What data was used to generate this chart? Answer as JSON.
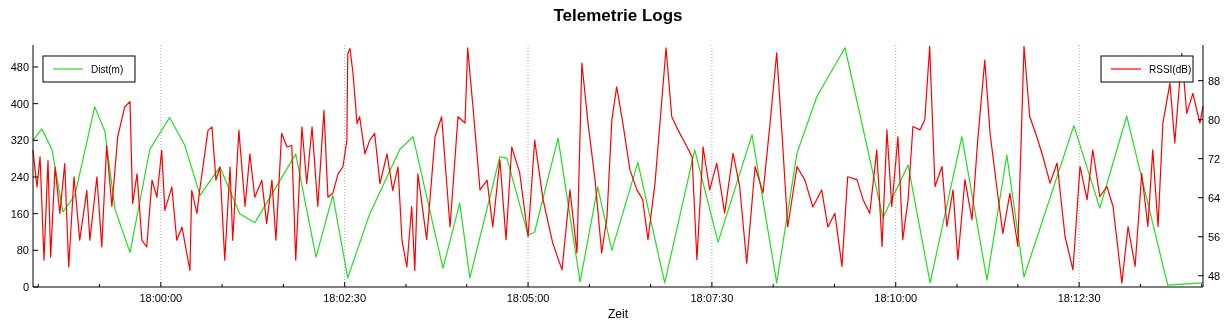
{
  "chart_data": {
    "type": "line",
    "title": "Telemetrie Logs",
    "xlabel": "Zeit",
    "xlim": [
      17.971,
      18.2364
    ],
    "ylim": [
      0,
      528
    ],
    "y2lim": [
      45.7,
      95.3
    ],
    "xticks": [
      {
        "value": 17.9722,
        "label": null
      },
      {
        "value": 17.9861,
        "label": null
      },
      {
        "value": 18.0,
        "label": "18:00:00"
      },
      {
        "value": 18.0139,
        "label": null
      },
      {
        "value": 18.0278,
        "label": null
      },
      {
        "value": 18.0417,
        "label": "18:02:30"
      },
      {
        "value": 18.0556,
        "label": null
      },
      {
        "value": 18.0694,
        "label": null
      },
      {
        "value": 18.0833,
        "label": "18:05:00"
      },
      {
        "value": 18.0972,
        "label": null
      },
      {
        "value": 18.1111,
        "label": null
      },
      {
        "value": 18.125,
        "label": "18:07:30"
      },
      {
        "value": 18.1389,
        "label": null
      },
      {
        "value": 18.1528,
        "label": null
      },
      {
        "value": 18.1667,
        "label": "18:10:00"
      },
      {
        "value": 18.1806,
        "label": null
      },
      {
        "value": 18.1944,
        "label": null
      },
      {
        "value": 18.2083,
        "label": "18:12:30"
      },
      {
        "value": 18.2222,
        "label": null
      },
      {
        "value": 18.2361,
        "label": null
      }
    ],
    "yticks": [
      0,
      80,
      160,
      240,
      320,
      400,
      480
    ],
    "y2ticks": [
      48,
      56,
      64,
      72,
      80,
      88
    ],
    "grid": "x",
    "legend": "top",
    "marker": "none",
    "line_style": "solid",
    "series": [
      {
        "name": "Dist(m)",
        "color": "#22dd22",
        "x": [
          17.971,
          17.973,
          17.9753,
          17.9778,
          17.9805,
          17.985,
          17.9873,
          17.9896,
          17.993,
          17.9975,
          18.002,
          18.0054,
          18.0089,
          18.0134,
          18.0179,
          18.0213,
          18.0306,
          18.0352,
          18.039,
          18.0424,
          18.0474,
          18.0542,
          18.0572,
          18.064,
          18.0678,
          18.0701,
          18.0769,
          18.0785,
          18.0833,
          18.0848,
          18.0901,
          18.0951,
          18.0991,
          18.1023,
          18.1082,
          18.1143,
          18.1211,
          18.1264,
          18.1341,
          18.1397,
          18.1443,
          18.1488,
          18.1552,
          18.1638,
          18.1695,
          18.1745,
          18.1817,
          18.1874,
          18.1919,
          18.1958,
          18.2071,
          18.213,
          18.2191,
          18.2284,
          18.2364
        ],
        "values": [
          320,
          345,
          300,
          164,
          200,
          393,
          340,
          170,
          75,
          300,
          370,
          310,
          200,
          262,
          160,
          140,
          290,
          65,
          200,
          20,
          160,
          300,
          328,
          41,
          183,
          20,
          284,
          281,
          113,
          120,
          325,
          11,
          218,
          80,
          272,
          9,
          299,
          98,
          332,
          9,
          292,
          415,
          522,
          151,
          266,
          9,
          328,
          15,
          288,
          22,
          352,
          172,
          373,
          4,
          9
        ]
      },
      {
        "name": "RSSI(dB)",
        "color": "#ff0000",
        "axis": "y2",
        "x": [
          17.971,
          17.9719,
          17.9726,
          17.9735,
          17.9744,
          17.975,
          17.976,
          17.9771,
          17.9782,
          17.9791,
          17.9803,
          17.9816,
          17.9832,
          17.9839,
          17.9855,
          17.9866,
          17.9877,
          17.9889,
          17.9902,
          17.9918,
          17.993,
          17.9936,
          17.9946,
          17.9957,
          17.9968,
          17.998,
          17.9991,
          18.0002,
          18.0009,
          18.0025,
          18.0036,
          18.0048,
          18.0066,
          18.007,
          18.0082,
          18.0088,
          18.0107,
          18.0116,
          18.0125,
          18.0134,
          18.0145,
          18.0157,
          18.0163,
          18.0177,
          18.0191,
          18.0202,
          18.0213,
          18.0229,
          18.024,
          18.0252,
          18.0261,
          18.0274,
          18.0286,
          18.0297,
          18.0306,
          18.032,
          18.0331,
          18.0343,
          18.0356,
          18.037,
          18.0379,
          18.039,
          18.0402,
          18.0413,
          18.0422,
          18.0424,
          18.0429,
          18.0436,
          18.0445,
          18.0451,
          18.0463,
          18.0474,
          18.0485,
          18.0497,
          18.0513,
          18.0526,
          18.0538,
          18.0547,
          18.0558,
          18.0569,
          18.0576,
          18.0583,
          18.0588,
          18.0603,
          18.0622,
          18.0637,
          18.0656,
          18.0674,
          18.069,
          18.0696,
          18.0708,
          18.0724,
          18.074,
          18.0753,
          18.0769,
          18.0783,
          18.0796,
          18.0814,
          18.0833,
          18.0848,
          18.0867,
          18.0889,
          18.091,
          18.0928,
          18.0944,
          18.0955,
          18.0969,
          18.0985,
          18.1,
          18.1012,
          18.1023,
          18.1034,
          18.1048,
          18.1064,
          18.108,
          18.1093,
          18.1105,
          18.1121,
          18.1137,
          18.1146,
          18.1159,
          18.1173,
          18.1189,
          18.1205,
          18.1216,
          18.123,
          18.1245,
          18.1261,
          18.1279,
          18.1298,
          18.1313,
          18.1329,
          18.1348,
          18.1366,
          18.1382,
          18.1397,
          18.1409,
          18.1422,
          18.1443,
          18.1461,
          18.1479,
          18.1499,
          18.1513,
          18.1529,
          18.1545,
          18.1558,
          18.1579,
          18.1593,
          18.1608,
          18.1624,
          18.1636,
          18.1647,
          18.1658,
          18.1672,
          18.1683,
          18.1695,
          18.1706,
          18.1722,
          18.1733,
          18.1744,
          18.1756,
          18.1772,
          18.1783,
          18.1797,
          18.1808,
          18.1824,
          18.184,
          18.1853,
          18.1869,
          18.1881,
          18.1896,
          18.191,
          18.1926,
          18.1944,
          18.1958,
          18.1971,
          18.1987,
          18.2001,
          18.2017,
          18.2033,
          18.2051,
          18.2069,
          18.2085,
          18.2101,
          18.2114,
          18.213,
          18.2146,
          18.216,
          18.218,
          18.2194,
          18.221,
          18.2225,
          18.2239,
          18.225,
          18.2262,
          18.2273,
          18.2289,
          18.23,
          18.2316,
          18.2327,
          18.2341,
          18.2357,
          18.2364
        ],
        "values": [
          73.7,
          66.2,
          72.4,
          51.2,
          71.6,
          51.8,
          70.3,
          60.8,
          71.0,
          49.8,
          68.3,
          55.3,
          65.5,
          55.3,
          68.3,
          53.9,
          74.7,
          62.2,
          76.4,
          82.6,
          83.7,
          62.8,
          68.9,
          55.3,
          53.9,
          67.6,
          64.1,
          73.7,
          61.4,
          66.2,
          55.3,
          58.0,
          49.1,
          65.5,
          60.8,
          65.5,
          77.8,
          78.5,
          67.6,
          70.3,
          51.2,
          70.3,
          55.3,
          77.8,
          62.2,
          73.0,
          64.1,
          67.6,
          58.7,
          67.6,
          55.3,
          77.2,
          74.4,
          74.7,
          51.2,
          78.5,
          66.9,
          78.5,
          62.2,
          81.9,
          64.1,
          64.9,
          68.9,
          70.3,
          75.8,
          93.5,
          94.6,
          89.4,
          79.2,
          80.6,
          73.0,
          75.8,
          77.2,
          66.9,
          73.0,
          65.5,
          70.3,
          55.3,
          49.8,
          62.2,
          49.1,
          68.9,
          65.6,
          55.4,
          76.5,
          80.6,
          58.0,
          80.6,
          79.3,
          94.7,
          82.6,
          65.6,
          67.6,
          58.0,
          71.8,
          55.4,
          74.4,
          69.1,
          56.0,
          75.8,
          63.6,
          54.7,
          49.2,
          65.6,
          52.7,
          91.6,
          79.3,
          67.6,
          52.7,
          60.0,
          79.9,
          86.7,
          79.3,
          69.7,
          65.6,
          63.6,
          55.4,
          67.0,
          84.7,
          94.7,
          80.6,
          77.9,
          75.2,
          72.4,
          51.3,
          74.4,
          65.6,
          71.1,
          60.9,
          73.1,
          66.3,
          50.6,
          70.4,
          65.0,
          79.3,
          93.7,
          77.2,
          58.0,
          70.4,
          67.6,
          62.1,
          65.6,
          58.0,
          60.8,
          49.9,
          68.3,
          67.7,
          63.6,
          60.8,
          73.8,
          54.0,
          77.9,
          62.2,
          76.5,
          55.4,
          63.6,
          78.6,
          77.9,
          80.0,
          95.0,
          66.3,
          70.4,
          58.1,
          65.6,
          51.3,
          67.7,
          59.5,
          75.8,
          92.2,
          77.2,
          66.3,
          56.7,
          64.9,
          54.0,
          95.0,
          80.6,
          76.5,
          72.4,
          67.0,
          71.1,
          56.1,
          49.2,
          70.4,
          63.6,
          73.8,
          64.2,
          66.3,
          62.2,
          46.5,
          58.1,
          49.9,
          69.0,
          58.1,
          73.8,
          58.1,
          79.3,
          87.5,
          75.2,
          93.6,
          81.3,
          85.4,
          79.3,
          82.7
        ]
      }
    ]
  }
}
